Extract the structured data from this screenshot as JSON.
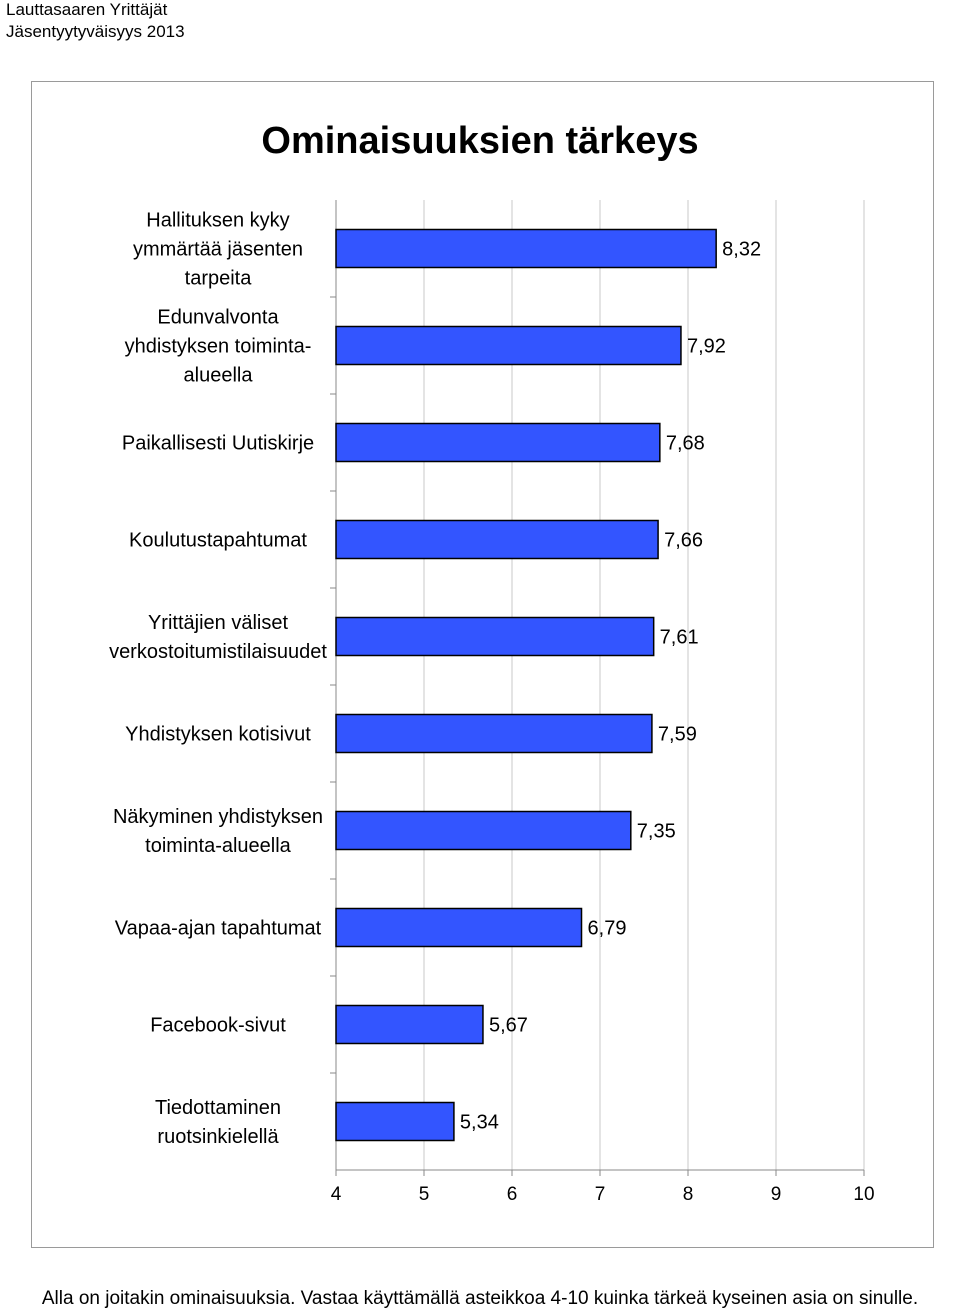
{
  "header": {
    "line1": "Lauttasaaren Yrittäjät",
    "line2": "Jäsentyytyväisyys 2013"
  },
  "footer": "Alla on joitakin ominaisuuksia. Vastaa käyttämällä asteikkoa 4-10 kuinka tärkeä kyseinen asia on sinulle.",
  "colors": {
    "bar_fill": "#3355ff",
    "bar_stroke": "#000000",
    "grid": "#c8c8c8"
  },
  "chart_data": {
    "type": "bar",
    "orientation": "horizontal",
    "title": "Ominaisuuksien tärkeys",
    "categories": [
      [
        "Hallituksen kyky",
        "ymmärtää jäsenten",
        "tarpeita"
      ],
      [
        "Edunvalvonta",
        "yhdistyksen toiminta-",
        "alueella"
      ],
      [
        "Paikallisesti Uutiskirje"
      ],
      [
        "Koulutustapahtumat"
      ],
      [
        "Yrittäjien väliset",
        "verkostoitumistilaisuudet"
      ],
      [
        "Yhdistyksen kotisivut"
      ],
      [
        "Näkyminen yhdistyksen",
        "toiminta-alueella"
      ],
      [
        "Vapaa-ajan tapahtumat"
      ],
      [
        "Facebook-sivut"
      ],
      [
        "Tiedottaminen",
        "ruotsinkielellä"
      ]
    ],
    "values": [
      8.32,
      7.92,
      7.68,
      7.66,
      7.61,
      7.59,
      7.35,
      6.79,
      5.67,
      5.34
    ],
    "value_labels": [
      "8,32",
      "7,92",
      "7,68",
      "7,66",
      "7,61",
      "7,59",
      "7,35",
      "6,79",
      "5,67",
      "5,34"
    ],
    "xlim": [
      4,
      10
    ],
    "xticks": [
      "4",
      "5",
      "6",
      "7",
      "8",
      "9",
      "10"
    ],
    "grid": true,
    "legend": "none"
  }
}
